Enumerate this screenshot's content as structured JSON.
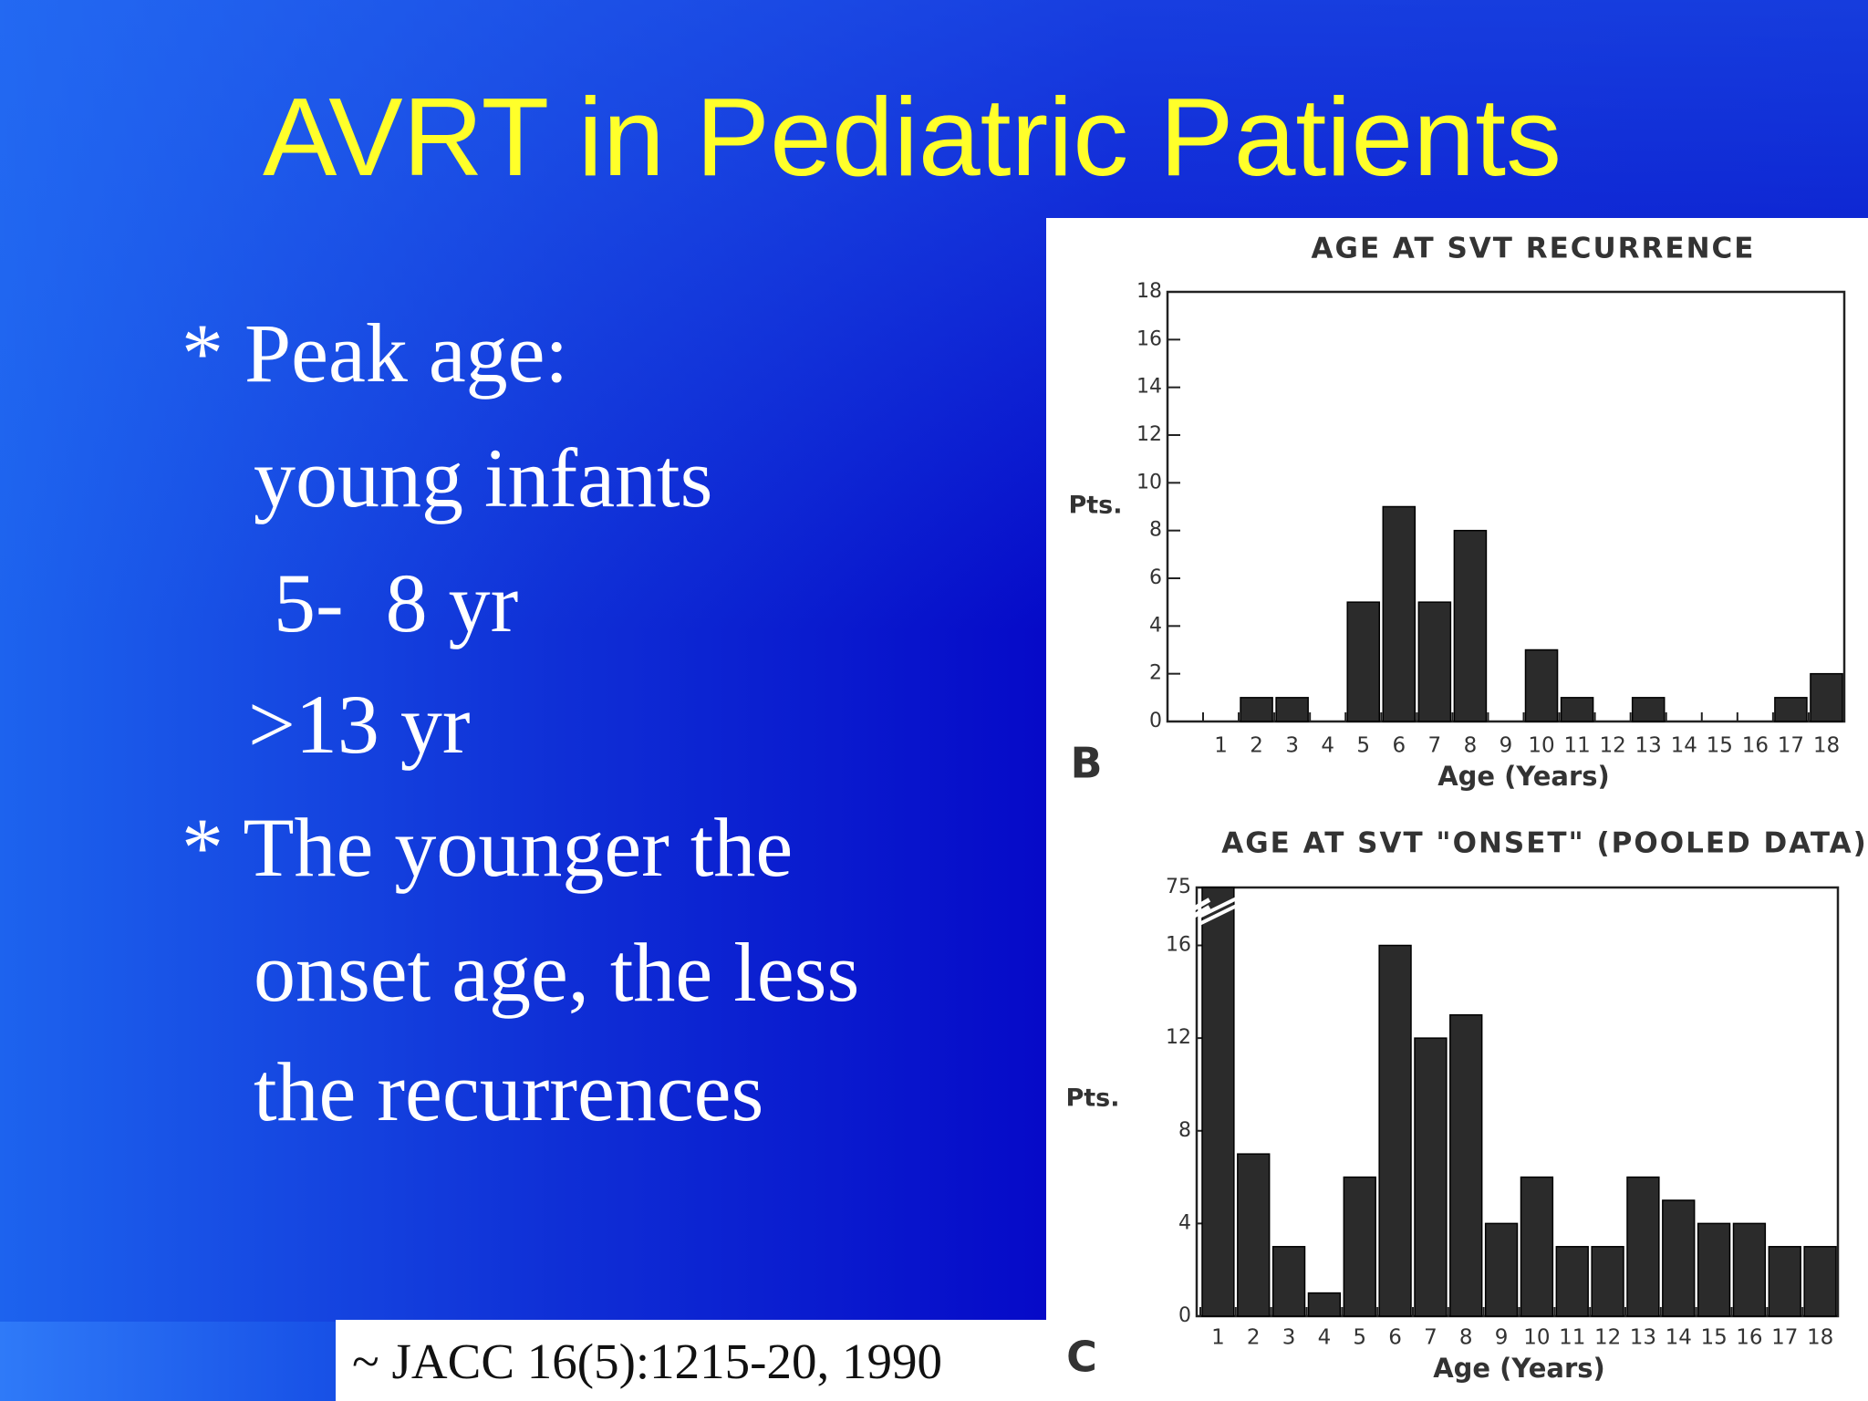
{
  "title": "AVRT in Pediatric Patients",
  "bullets": [
    "* Peak age:",
    "young infants",
    "5-  8 yr",
    ">13 yr",
    "* The younger the",
    "onset age, the less",
    "the recurrences"
  ],
  "citation": "~ JACC 16(5):1215-20, 1990",
  "chart_data": [
    {
      "type": "bar",
      "title": "AGE AT SVT RECURRENCE",
      "panel": "B",
      "ylabel": "Pts.",
      "xlabel": "Age (Years)",
      "categories": [
        "1",
        "2",
        "3",
        "4",
        "5",
        "6",
        "7",
        "8",
        "9",
        "10",
        "11",
        "12",
        "13",
        "14",
        "15",
        "16",
        "17",
        "18"
      ],
      "values": [
        0,
        1,
        1,
        0,
        5,
        9,
        5,
        8,
        0,
        3,
        1,
        0,
        1,
        0,
        0,
        0,
        1,
        2
      ],
      "color": "#2b2b2b",
      "ylim": [
        0,
        18
      ],
      "yticks": [
        0,
        2,
        4,
        6,
        8,
        10,
        12,
        14,
        16,
        18
      ]
    },
    {
      "type": "bar",
      "title": "AGE AT SVT \"ONSET\" (POOLED DATA)",
      "panel": "C",
      "ylabel": "Pts.",
      "xlabel": "Age (Years)",
      "categories": [
        "1",
        "2",
        "3",
        "4",
        "5",
        "6",
        "7",
        "8",
        "9",
        "10",
        "11",
        "12",
        "13",
        "14",
        "15",
        "16",
        "17",
        "18"
      ],
      "values": [
        75,
        7,
        3,
        1,
        6,
        16,
        12,
        13,
        4,
        6,
        3,
        3,
        6,
        5,
        4,
        4,
        3,
        3
      ],
      "color": "#2b2b2b",
      "ylim": [
        0,
        75
      ],
      "yticks": [
        0,
        4,
        8,
        12,
        16,
        75
      ],
      "y_break": [
        17.5,
        74
      ]
    }
  ]
}
